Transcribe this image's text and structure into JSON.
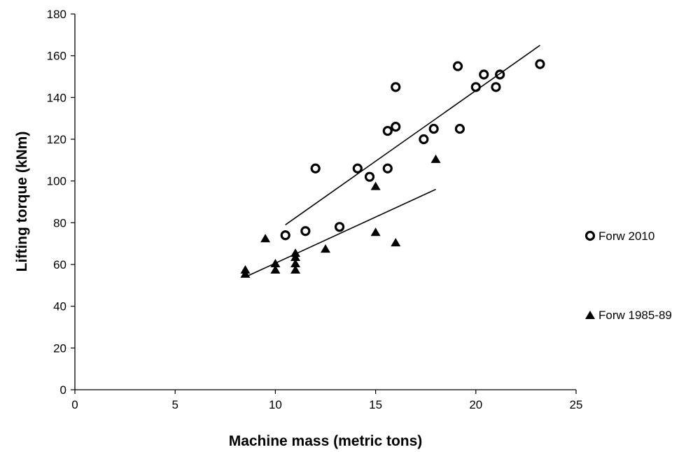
{
  "chart_data": {
    "type": "scatter",
    "xlabel": "Machine mass (metric tons)",
    "ylabel": "Lifting torque (kNm)",
    "xlim": [
      0,
      25
    ],
    "ylim": [
      0,
      180
    ],
    "xticks": [
      0,
      5,
      10,
      15,
      20,
      25
    ],
    "yticks": [
      0,
      20,
      40,
      60,
      80,
      100,
      120,
      140,
      160,
      180
    ],
    "grid": false,
    "legend_position": "right",
    "series": [
      {
        "name": "Forw 2010",
        "marker": "circle",
        "color": "#000000",
        "points": [
          [
            10.5,
            74
          ],
          [
            11.5,
            76
          ],
          [
            12.0,
            106
          ],
          [
            13.2,
            78
          ],
          [
            14.1,
            106
          ],
          [
            14.7,
            102
          ],
          [
            15.6,
            106
          ],
          [
            15.6,
            124
          ],
          [
            16.0,
            126
          ],
          [
            16.0,
            145
          ],
          [
            17.4,
            120
          ],
          [
            17.9,
            125
          ],
          [
            19.1,
            155
          ],
          [
            19.2,
            125
          ],
          [
            20.0,
            145
          ],
          [
            20.4,
            151
          ],
          [
            21.0,
            145
          ],
          [
            21.2,
            151
          ],
          [
            23.2,
            156
          ]
        ],
        "trendline": [
          [
            10.5,
            79
          ],
          [
            23.2,
            165
          ]
        ]
      },
      {
        "name": "Forw 1985-89",
        "marker": "triangle",
        "color": "#000000",
        "points": [
          [
            8.5,
            55
          ],
          [
            8.5,
            57
          ],
          [
            9.5,
            72
          ],
          [
            10.0,
            57
          ],
          [
            10.0,
            60
          ],
          [
            11.0,
            57
          ],
          [
            11.0,
            60
          ],
          [
            11.0,
            63
          ],
          [
            11.0,
            65
          ],
          [
            12.5,
            67
          ],
          [
            15.0,
            97
          ],
          [
            15.0,
            75
          ],
          [
            16.0,
            70
          ],
          [
            18.0,
            110
          ]
        ],
        "trendline": [
          [
            8.5,
            54
          ],
          [
            18.0,
            96
          ]
        ]
      }
    ]
  }
}
